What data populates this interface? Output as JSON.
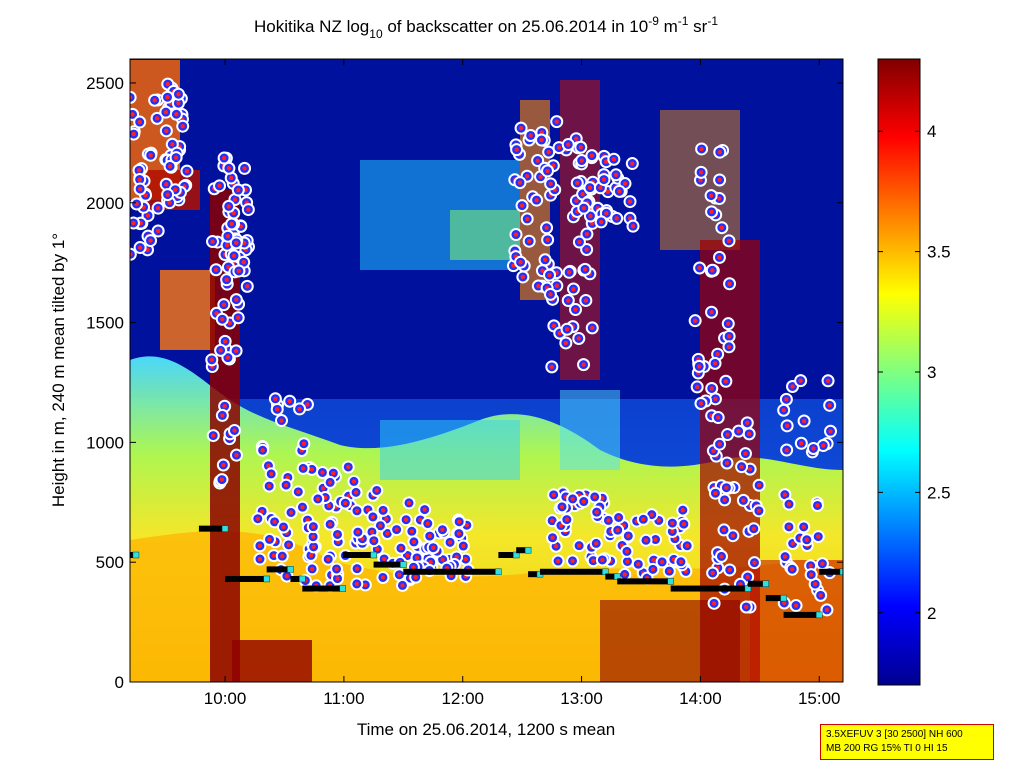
{
  "chart_data": {
    "type": "heatmap",
    "title_parts": {
      "a": "Hokitika NZ log",
      "a_sub": "10",
      "b": " of backscatter on 25.06.2014 in 10",
      "b_sup": "-9",
      "c": " m",
      "c_sup": "-1",
      "d": " sr",
      "d_sup": "-1"
    },
    "xlabel": "Time on 25.06.2014, 1200 s mean",
    "ylabel": "Height in m, 240 m mean tilted by 1°",
    "x_unit": "hours",
    "xlim": [
      9.2,
      15.2
    ],
    "ylim": [
      0,
      2600
    ],
    "x_ticks": [
      {
        "value": 10,
        "label": "10:00"
      },
      {
        "value": 11,
        "label": "11:00"
      },
      {
        "value": 12,
        "label": "12:00"
      },
      {
        "value": 13,
        "label": "13:00"
      },
      {
        "value": 14,
        "label": "14:00"
      },
      {
        "value": 15,
        "label": "15:00"
      }
    ],
    "y_ticks": [
      {
        "value": 0,
        "label": "0"
      },
      {
        "value": 500,
        "label": "500"
      },
      {
        "value": 1000,
        "label": "1000"
      },
      {
        "value": 1500,
        "label": "1500"
      },
      {
        "value": 2000,
        "label": "2000"
      },
      {
        "value": 2500,
        "label": "2500"
      }
    ],
    "colorbar": {
      "colormap": "jet",
      "range": [
        1.7,
        4.3
      ],
      "ticks": [
        {
          "value": 2,
          "label": "2"
        },
        {
          "value": 2.5,
          "label": "2.5"
        },
        {
          "value": 3,
          "label": "3"
        },
        {
          "value": 3.5,
          "label": "3.5"
        },
        {
          "value": 4,
          "label": "4"
        }
      ]
    },
    "mixing_layer_steps": [
      {
        "x0": 9.2,
        "x1": 9.25,
        "y": 530
      },
      {
        "x0": 9.78,
        "x1": 10.0,
        "y": 640
      },
      {
        "x0": 10.0,
        "x1": 10.35,
        "y": 430
      },
      {
        "x0": 10.35,
        "x1": 10.55,
        "y": 470
      },
      {
        "x0": 10.55,
        "x1": 10.65,
        "y": 430
      },
      {
        "x0": 10.65,
        "x1": 10.99,
        "y": 390
      },
      {
        "x0": 10.99,
        "x1": 11.25,
        "y": 530
      },
      {
        "x0": 11.25,
        "x1": 11.5,
        "y": 490
      },
      {
        "x0": 11.5,
        "x1": 12.3,
        "y": 460
      },
      {
        "x0": 12.3,
        "x1": 12.45,
        "y": 530
      },
      {
        "x0": 12.45,
        "x1": 12.55,
        "y": 550
      },
      {
        "x0": 12.55,
        "x1": 12.65,
        "y": 450
      },
      {
        "x0": 12.65,
        "x1": 13.2,
        "y": 460
      },
      {
        "x0": 13.2,
        "x1": 13.3,
        "y": 440
      },
      {
        "x0": 13.3,
        "x1": 13.75,
        "y": 420
      },
      {
        "x0": 13.75,
        "x1": 14.4,
        "y": 390
      },
      {
        "x0": 14.4,
        "x1": 14.55,
        "y": 410
      },
      {
        "x0": 14.55,
        "x1": 14.7,
        "y": 350
      },
      {
        "x0": 14.7,
        "x1": 15.0,
        "y": 280
      },
      {
        "x0": 15.0,
        "x1": 15.2,
        "y": 460
      }
    ],
    "cloud_base_points": "dense scatter of cloud/aerosol layer detections (white-rimmed blue-red markers)"
  },
  "infobox": {
    "line1": "3.5XEFUV 3 [30 2500] NH 600",
    "line2": "MB 200 RG 15% TI 0 HI 15"
  }
}
